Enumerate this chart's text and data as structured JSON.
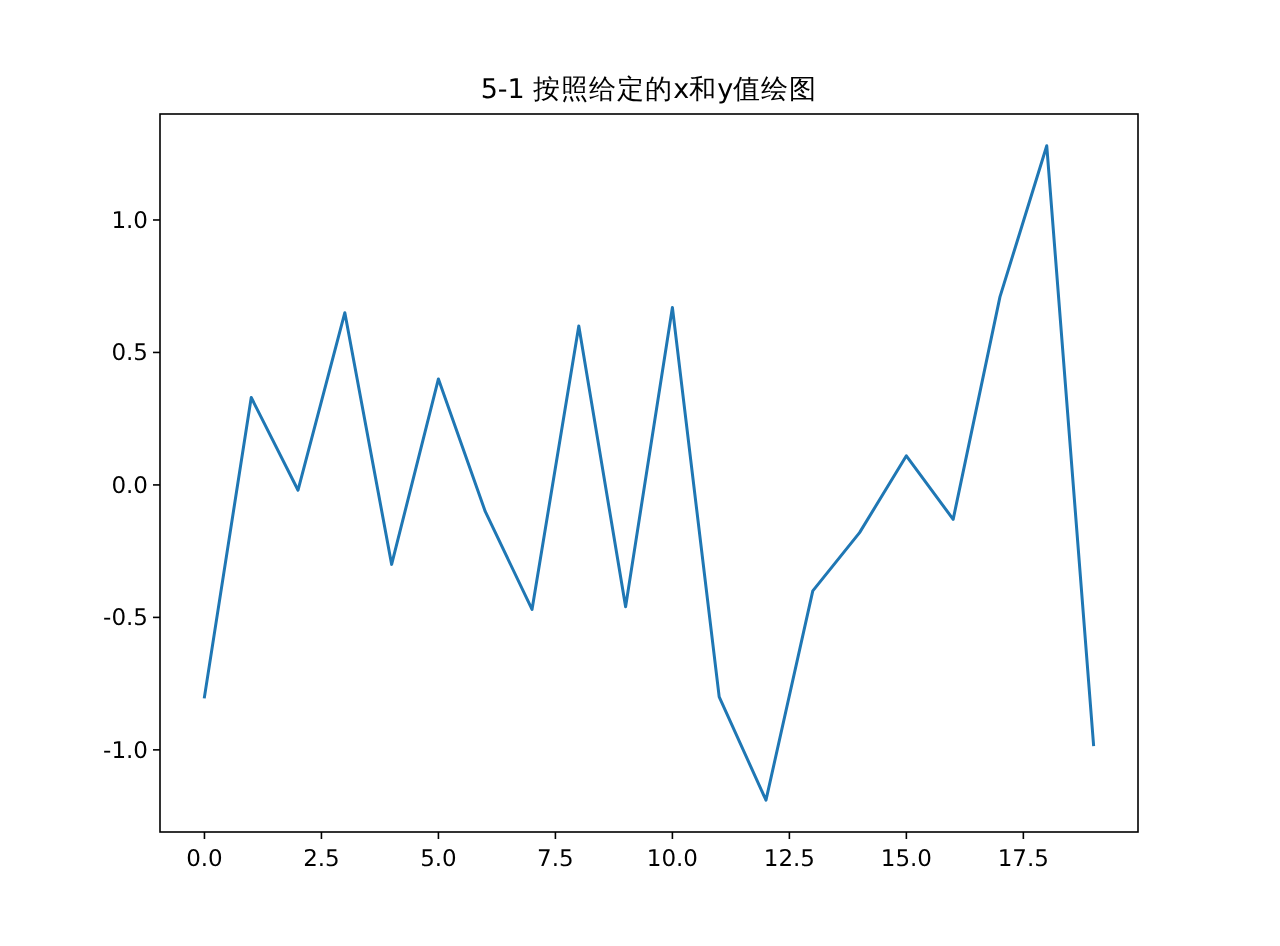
{
  "chart_data": {
    "type": "line",
    "title": "5-1 按照给定的x和y值绘图",
    "x": [
      0,
      1,
      2,
      3,
      4,
      5,
      6,
      7,
      8,
      9,
      10,
      11,
      12,
      13,
      14,
      15,
      16,
      17,
      18,
      19
    ],
    "series": [
      {
        "color": "#1f77b4",
        "values": [
          -0.8,
          0.33,
          -0.02,
          0.65,
          -0.3,
          0.4,
          -0.1,
          -0.47,
          0.6,
          -0.46,
          0.67,
          -0.8,
          -1.19,
          -0.4,
          -0.18,
          0.11,
          -0.13,
          0.71,
          1.28,
          -0.98
        ]
      }
    ],
    "xlim": [
      -0.95,
      19.95
    ],
    "ylim": [
      -1.31,
      1.4
    ],
    "xticks": [
      {
        "value": 0,
        "label": "0.0"
      },
      {
        "value": 2.5,
        "label": "2.5"
      },
      {
        "value": 5,
        "label": "5.0"
      },
      {
        "value": 7.5,
        "label": "7.5"
      },
      {
        "value": 10,
        "label": "10.0"
      },
      {
        "value": 12.5,
        "label": "12.5"
      },
      {
        "value": 15,
        "label": "15.0"
      },
      {
        "value": 17.5,
        "label": "17.5"
      }
    ],
    "yticks": [
      {
        "value": -1,
        "label": "-1.0"
      },
      {
        "value": -0.5,
        "label": "-0.5"
      },
      {
        "value": 0,
        "label": "0.0"
      },
      {
        "value": 0.5,
        "label": "0.5"
      },
      {
        "value": 1,
        "label": "1.0"
      }
    ]
  }
}
